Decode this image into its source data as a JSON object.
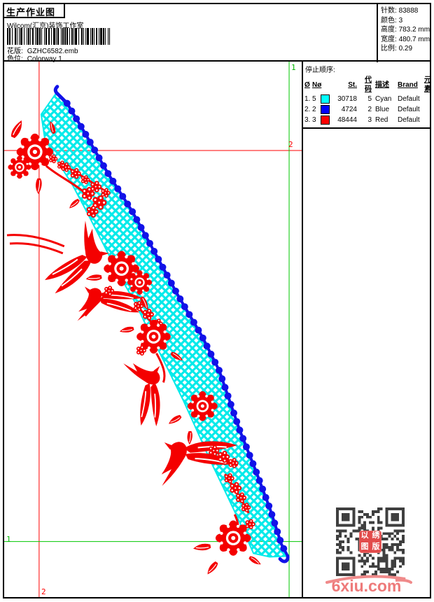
{
  "header": {
    "title": "生产作业图",
    "studio": "Wilcom(汇京)装饰工作室",
    "pattern_label": "花版:",
    "pattern_value": "GZHC6582.emb",
    "colorway_label": "色位:",
    "colorway_value": "Colorway 1"
  },
  "stats": {
    "items": [
      {
        "label": "针数:",
        "value": "83888"
      },
      {
        "label": "颜色:",
        "value": "3"
      },
      {
        "label": "高度:",
        "value": "783.2 mm"
      },
      {
        "label": "宽度:",
        "value": "480.7 mm"
      },
      {
        "label": "比例:",
        "value": "0.29"
      }
    ]
  },
  "stop_sequence": {
    "title": "停止顺序:",
    "columns": {
      "seq": "Ø",
      "needle": "Nø",
      "stitches": "St.",
      "code": "代码",
      "desc": "描述",
      "brand": "Brand",
      "element": "元素"
    },
    "rows": [
      {
        "seq": "1.",
        "needle": "5",
        "swatch": "#00ffff",
        "stitches": "30718",
        "code": "5",
        "desc": "Cyan",
        "brand": "Default",
        "element": ""
      },
      {
        "seq": "2.",
        "needle": "2",
        "swatch": "#0000ff",
        "stitches": "4724",
        "code": "2",
        "desc": "Blue",
        "brand": "Default",
        "element": ""
      },
      {
        "seq": "3.",
        "needle": "3",
        "swatch": "#ff0000",
        "stitches": "48444",
        "code": "3",
        "desc": "Red",
        "brand": "Default",
        "element": ""
      }
    ]
  },
  "design": {
    "markers": {
      "start_label": "1",
      "end_label": "2"
    },
    "colors": {
      "mesh_cyan": "#00eaea",
      "edge_blue": "#1212e8",
      "motif_red": "#f40000",
      "start_guide_green": "#00c800",
      "end_guide_red": "#ff0000"
    }
  },
  "footer": {
    "watermark": "6xiu.com",
    "stamp_chars": [
      "以",
      "绣",
      "图",
      "版"
    ]
  }
}
